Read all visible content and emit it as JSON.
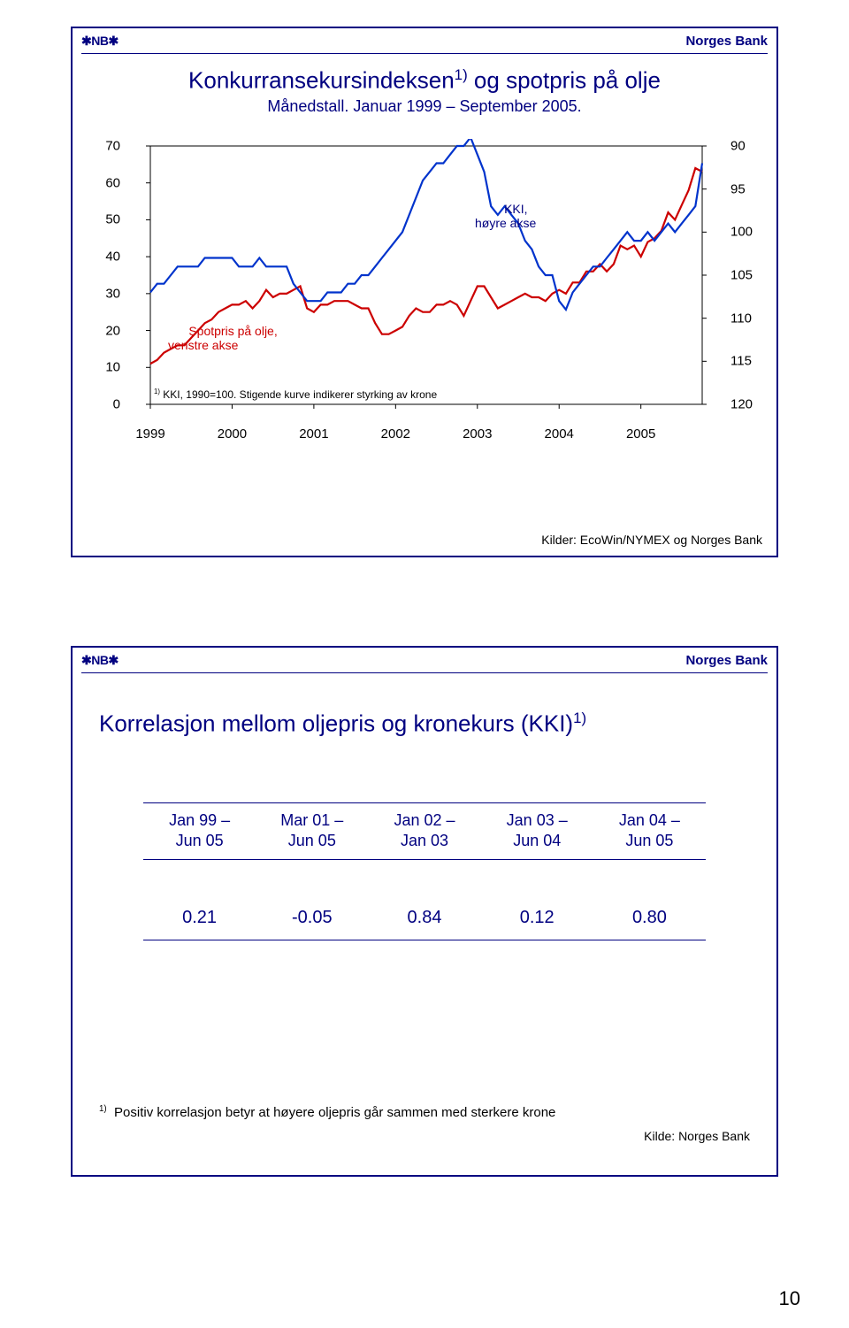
{
  "page_number": "10",
  "header": {
    "logo": "✱NB✱",
    "bank": "Norges Bank"
  },
  "slide1": {
    "title_main": "Konkurransekursindeksen",
    "title_sup": "1)",
    "title_rest": " og spotpris på olje",
    "subtitle": "Månedstall. Januar 1999 – September 2005.",
    "chart": {
      "left_axis": {
        "ticks": [
          "70",
          "60",
          "50",
          "40",
          "30",
          "20",
          "10",
          "0"
        ],
        "min": 0,
        "max": 70,
        "step": 10
      },
      "right_axis": {
        "ticks": [
          "90",
          "95",
          "100",
          "105",
          "110",
          "115",
          "120"
        ],
        "min": 90,
        "max": 120,
        "step": 5
      },
      "x_axis": {
        "ticks": [
          "1999",
          "2000",
          "2001",
          "2002",
          "2003",
          "2004",
          "2005"
        ]
      },
      "series_oil": {
        "label": "Spotpris på olje,\nvenstre akse",
        "color": "#cc0000",
        "values": [
          11,
          12,
          14,
          15,
          16,
          16,
          18,
          20,
          22,
          23,
          25,
          26,
          27,
          27,
          28,
          26,
          28,
          31,
          29,
          30,
          30,
          31,
          32,
          26,
          25,
          27,
          27,
          28,
          28,
          28,
          27,
          26,
          26,
          22,
          19,
          19,
          20,
          21,
          24,
          26,
          25,
          25,
          27,
          27,
          28,
          27,
          24,
          28,
          32,
          32,
          29,
          26,
          27,
          28,
          29,
          30,
          29,
          29,
          28,
          30,
          31,
          30,
          33,
          33,
          36,
          36,
          38,
          36,
          38,
          43,
          42,
          43,
          40,
          44,
          45,
          47,
          52,
          50,
          54,
          58,
          64,
          63
        ]
      },
      "series_kki": {
        "label": "KKI,\nhøyre akse",
        "color": "#0033cc",
        "values": [
          107,
          106,
          106,
          105,
          104,
          104,
          104,
          104,
          103,
          103,
          103,
          103,
          103,
          104,
          104,
          104,
          103,
          104,
          104,
          104,
          104,
          106,
          107,
          108,
          108,
          108,
          107,
          107,
          107,
          106,
          106,
          105,
          105,
          104,
          103,
          102,
          101,
          100,
          98,
          96,
          94,
          93,
          92,
          92,
          91,
          90,
          90,
          89,
          91,
          93,
          97,
          98,
          97,
          98,
          99,
          101,
          102,
          104,
          105,
          105,
          108,
          109,
          107,
          106,
          105,
          104,
          104,
          103,
          102,
          101,
          100,
          101,
          101,
          100,
          101,
          100,
          99,
          100,
          99,
          98,
          97,
          92
        ]
      },
      "footnote": "KKI, 1990=100. Stigende kurve indikerer styrking av krone",
      "footnote_sup": "1)",
      "source": "Kilder: EcoWin/NYMEX og Norges Bank"
    }
  },
  "slide2": {
    "title": "Korrelasjon mellom oljepris og kronekurs (KKI)",
    "title_sup": "1)",
    "table": {
      "headers": [
        "Jan 99 –\nJun 05",
        "Mar 01 –\nJun 05",
        "Jan 02 –\nJan 03",
        "Jan 03 –\nJun 04",
        "Jan 04 –\nJun 05"
      ],
      "values": [
        "0.21",
        "-0.05",
        "0.84",
        "0.12",
        "0.80"
      ]
    },
    "footnote_sup": "1)",
    "footnote": "Positiv korrelasjon betyr at høyere oljepris går sammen med sterkere krone",
    "source": "Kilde: Norges Bank"
  },
  "colors": {
    "frame": "#000080",
    "text": "#000080",
    "axis": "#000000",
    "oil": "#cc0000",
    "kki": "#0033cc"
  }
}
